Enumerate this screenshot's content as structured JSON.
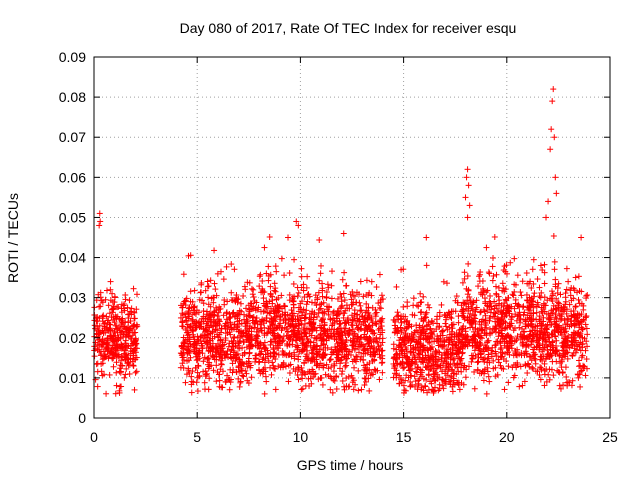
{
  "chart_data": {
    "type": "scatter",
    "title": "Day 080 of 2017, Rate Of TEC Index for receiver esqu",
    "xlabel": "GPS time / hours",
    "ylabel": "ROTI / TECUs",
    "xlim": [
      0,
      25
    ],
    "ylim": [
      0,
      0.09
    ],
    "x_ticks": [
      0,
      5,
      10,
      15,
      20,
      25
    ],
    "x_tick_labels": [
      "0",
      "5",
      "10",
      "15",
      "20",
      "25"
    ],
    "y_ticks": [
      0,
      0.01,
      0.02,
      0.03,
      0.04,
      0.05,
      0.06,
      0.07,
      0.08,
      0.09
    ],
    "y_tick_labels": [
      "0",
      "0.01",
      "0.02",
      "0.03",
      "0.04",
      "0.05",
      "0.06",
      "0.07",
      "0.08",
      "0.09"
    ],
    "grid": true,
    "marker": "+",
    "color": "#ff0000",
    "segments": [
      {
        "x_start": 0.0,
        "x_end": 2.1,
        "y_center": 0.02,
        "y_spread": 0.012
      },
      {
        "x_start": 4.2,
        "x_end": 7.5,
        "y_center": 0.02,
        "y_spread": 0.013
      },
      {
        "x_start": 7.5,
        "x_end": 10.0,
        "y_center": 0.022,
        "y_spread": 0.014
      },
      {
        "x_start": 10.0,
        "x_end": 14.0,
        "y_center": 0.02,
        "y_spread": 0.013
      },
      {
        "x_start": 14.5,
        "x_end": 17.8,
        "y_center": 0.017,
        "y_spread": 0.012
      },
      {
        "x_start": 17.8,
        "x_end": 21.8,
        "y_center": 0.022,
        "y_spread": 0.014
      },
      {
        "x_start": 21.8,
        "x_end": 23.9,
        "y_center": 0.021,
        "y_spread": 0.013
      }
    ],
    "highlights": [
      {
        "x": 0.25,
        "y": 0.048
      },
      {
        "x": 0.28,
        "y": 0.051
      },
      {
        "x": 0.3,
        "y": 0.049
      },
      {
        "x": 9.4,
        "y": 0.045
      },
      {
        "x": 9.8,
        "y": 0.049
      },
      {
        "x": 9.9,
        "y": 0.048
      },
      {
        "x": 12.1,
        "y": 0.046
      },
      {
        "x": 16.1,
        "y": 0.045
      },
      {
        "x": 18.0,
        "y": 0.055
      },
      {
        "x": 18.05,
        "y": 0.06
      },
      {
        "x": 18.1,
        "y": 0.062
      },
      {
        "x": 18.15,
        "y": 0.058
      },
      {
        "x": 18.2,
        "y": 0.053
      },
      {
        "x": 18.1,
        "y": 0.05
      },
      {
        "x": 21.9,
        "y": 0.05
      },
      {
        "x": 22.0,
        "y": 0.054
      },
      {
        "x": 22.1,
        "y": 0.067
      },
      {
        "x": 22.15,
        "y": 0.072
      },
      {
        "x": 22.2,
        "y": 0.079
      },
      {
        "x": 22.25,
        "y": 0.082
      },
      {
        "x": 22.3,
        "y": 0.07
      },
      {
        "x": 22.35,
        "y": 0.06
      },
      {
        "x": 22.4,
        "y": 0.056
      },
      {
        "x": 23.6,
        "y": 0.045
      }
    ]
  }
}
